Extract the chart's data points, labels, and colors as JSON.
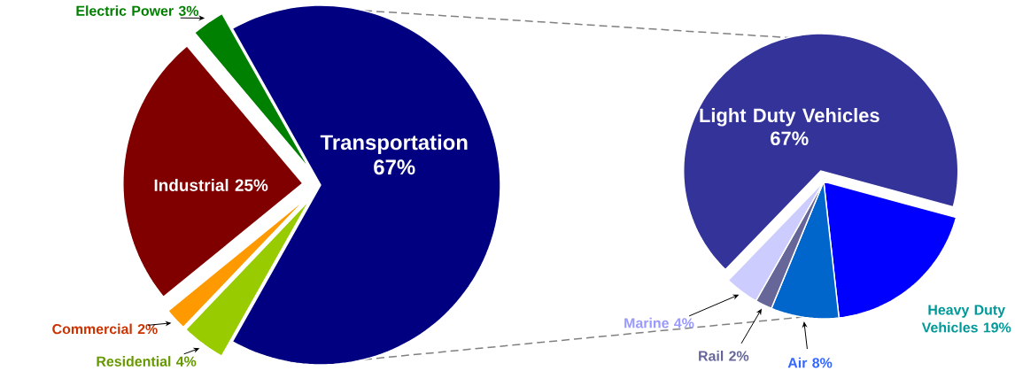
{
  "chart_data": [
    {
      "type": "pie",
      "categories": [
        "Transportation",
        "Electric Power",
        "Industrial",
        "Commercial",
        "Residential"
      ],
      "values": [
        67,
        3,
        25,
        2,
        4
      ],
      "value_labels": [
        "67%",
        "3%",
        "25%",
        "2%",
        "4%"
      ],
      "colors": [
        "#000080",
        "#008000",
        "#800000",
        "#FF9900",
        "#99CC00"
      ]
    },
    {
      "type": "pie",
      "categories": [
        "Light Duty Vehicles",
        "Heavy Duty Vehicles",
        "Air",
        "Rail",
        "Marine"
      ],
      "values": [
        67,
        19,
        8,
        2,
        4
      ],
      "value_labels": [
        "67%",
        "19%",
        "8%",
        "2%",
        "4%"
      ],
      "colors": [
        "#333399",
        "#0000FF",
        "#0066CC",
        "#666699",
        "#CCCCFF"
      ]
    }
  ]
}
